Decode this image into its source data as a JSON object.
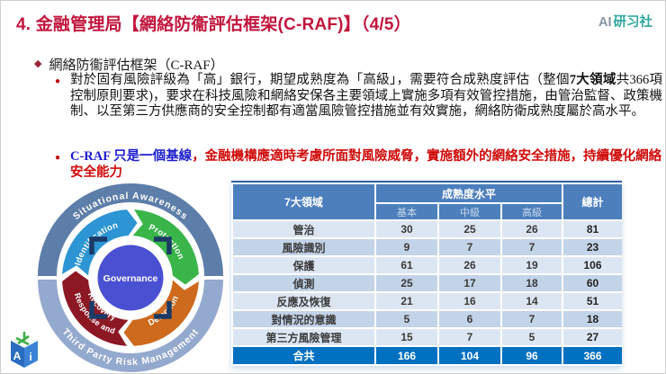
{
  "header": {
    "title": "4. 金融管理局【網絡防衞評估框架(C-RAF)】（4/5）",
    "brand_ai": "AI",
    "brand_name": "研习社"
  },
  "bullets": {
    "level1": "網絡防衞評估框架（C-RAF）",
    "level2_pre": "對於固有風險評級為「高」銀行，期望成熟度為「高級」，需要符合成熟度評估（整個",
    "level2_bold": "7大領域",
    "level2_post": "共366項控制原則要求)，要求在科技風險和網絡安保各主要領域上實施多項有效管控措施，由管治監督、政策機制、以至第三方供應商的安全控制都有適當風險管控措施並有效實施，網絡防衛成熟度屬於高水平。",
    "level3_blue": "C-RAF 只是一個基線",
    "level3_red": "，金融機構應適時考慮所面對風險威脅，實施額外的網絡安全措施，持續優化網絡安全能力"
  },
  "diagram": {
    "outer_top": {
      "label": "Situational Awareness",
      "color": "#5d7ea9"
    },
    "outer_bottom": {
      "label": "Third Party Risk Management",
      "color": "#94a9ce"
    },
    "segments": [
      {
        "id": "identification",
        "label": "Identification",
        "lines": [
          "Identification"
        ],
        "color": "#2d95d3"
      },
      {
        "id": "protection",
        "label": "Protection",
        "lines": [
          "Protection"
        ],
        "color": "#3ab54a"
      },
      {
        "id": "detection",
        "label": "Detection",
        "lines": [
          "Detection"
        ],
        "color": "#cd6a1d"
      },
      {
        "id": "response-recovery",
        "label": "Response and Recovery",
        "lines": [
          "Response and",
          "Recovery"
        ],
        "color": "#8c1823"
      }
    ],
    "center": {
      "label": "Governance",
      "color": "#4a50d2",
      "bracket_color": "#1b3a66"
    }
  },
  "table": {
    "col_header_domain": "7大領域",
    "col_group": "成熟度水平",
    "sub_headers": [
      "基本",
      "中級",
      "高級"
    ],
    "col_total": "總計",
    "rows": [
      {
        "label": "管治",
        "basic": "30",
        "mid": "25",
        "high": "26",
        "total": "81"
      },
      {
        "label": "風險識別",
        "basic": "9",
        "mid": "7",
        "high": "7",
        "total": "23"
      },
      {
        "label": "保護",
        "basic": "61",
        "mid": "26",
        "high": "19",
        "total": "106"
      },
      {
        "label": "偵測",
        "basic": "25",
        "mid": "17",
        "high": "18",
        "total": "60"
      },
      {
        "label": "反應及恢復",
        "basic": "21",
        "mid": "16",
        "high": "14",
        "total": "51"
      },
      {
        "label": "對情況的意識",
        "basic": "5",
        "mid": "6",
        "high": "7",
        "total": "18"
      },
      {
        "label": "第三方風險管理",
        "basic": "15",
        "mid": "7",
        "high": "5",
        "total": "27"
      }
    ],
    "total_row": {
      "label": "合共",
      "basic": "166",
      "mid": "104",
      "high": "96",
      "total": "366"
    }
  },
  "colors": {
    "title": "#c1153d",
    "accent_red": "#cf0a0a",
    "accent_blue": "#1c1ccc",
    "brand_teal": "#2da79d",
    "brand_gray": "#8795a3",
    "table_header": "#4d7fbd",
    "table_row_light": "#dce6f2",
    "table_row_dark": "#c3d3e8",
    "table_total_row": "#0070c0",
    "table_top_border": "#2f5d9e"
  }
}
